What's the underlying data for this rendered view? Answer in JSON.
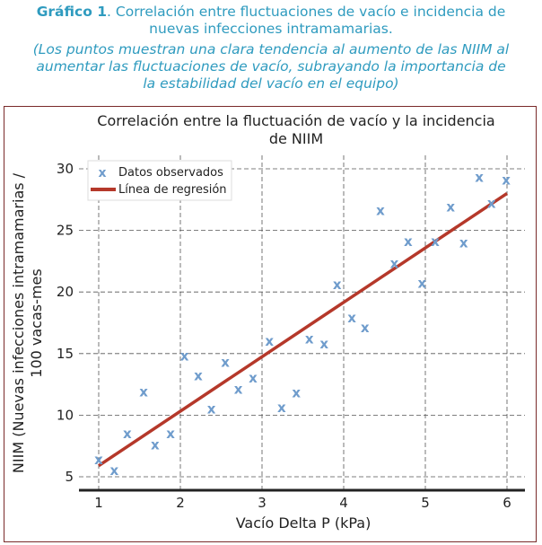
{
  "caption": {
    "label": "Gráfico 1",
    "text": ". Correlación entre fluctuaciones de vacío e incidencia de nuevas infecciones intramamarias.",
    "note_lines": [
      "(Los puntos muestran una clara tendencia al aumento de las NIIM al",
      "aumentar las fluctuaciones de vacío, subrayando la importancia de",
      "la estabilidad del vacío en el equipo)"
    ]
  },
  "chart_data": {
    "type": "scatter",
    "title_lines": [
      "Correlación entre la fluctuación de vacío y la incidencia",
      "de NIIM"
    ],
    "xlabel": "Vacío Delta P (kPa)",
    "ylabel_lines": [
      "NIIM (Nuevas infecciones intramamarias /",
      "100 vacas-mes"
    ],
    "xlim": [
      0.9,
      6.1
    ],
    "ylim": [
      4,
      31
    ],
    "xticks": [
      1,
      2,
      3,
      4,
      5,
      6
    ],
    "yticks": [
      5,
      10,
      15,
      20,
      25,
      30
    ],
    "grid": true,
    "legend_position": "top-left",
    "series": [
      {
        "name": "Datos observados",
        "marker": "x",
        "color": "#6f9ccc",
        "points": [
          [
            1.0,
            6.4
          ],
          [
            1.19,
            5.5
          ],
          [
            1.35,
            8.5
          ],
          [
            1.55,
            11.9
          ],
          [
            1.69,
            7.6
          ],
          [
            1.88,
            8.5
          ],
          [
            2.05,
            14.8
          ],
          [
            2.22,
            13.2
          ],
          [
            2.38,
            10.5
          ],
          [
            2.55,
            14.3
          ],
          [
            2.71,
            12.1
          ],
          [
            2.89,
            13.0
          ],
          [
            3.09,
            16.0
          ],
          [
            3.24,
            10.6
          ],
          [
            3.42,
            11.8
          ],
          [
            3.58,
            16.2
          ],
          [
            3.76,
            15.8
          ],
          [
            3.92,
            20.6
          ],
          [
            4.1,
            17.9
          ],
          [
            4.26,
            17.1
          ],
          [
            4.45,
            26.6
          ],
          [
            4.62,
            22.3
          ],
          [
            4.79,
            24.1
          ],
          [
            4.96,
            20.7
          ],
          [
            5.12,
            24.1
          ],
          [
            5.31,
            26.9
          ],
          [
            5.47,
            24.0
          ],
          [
            5.66,
            29.3
          ],
          [
            5.81,
            27.2
          ],
          [
            5.99,
            29.1
          ]
        ]
      },
      {
        "name": "Línea de regresión",
        "type": "line",
        "color": "#b5382a",
        "points": [
          [
            1,
            5.9
          ],
          [
            6,
            28.0
          ]
        ]
      }
    ]
  }
}
